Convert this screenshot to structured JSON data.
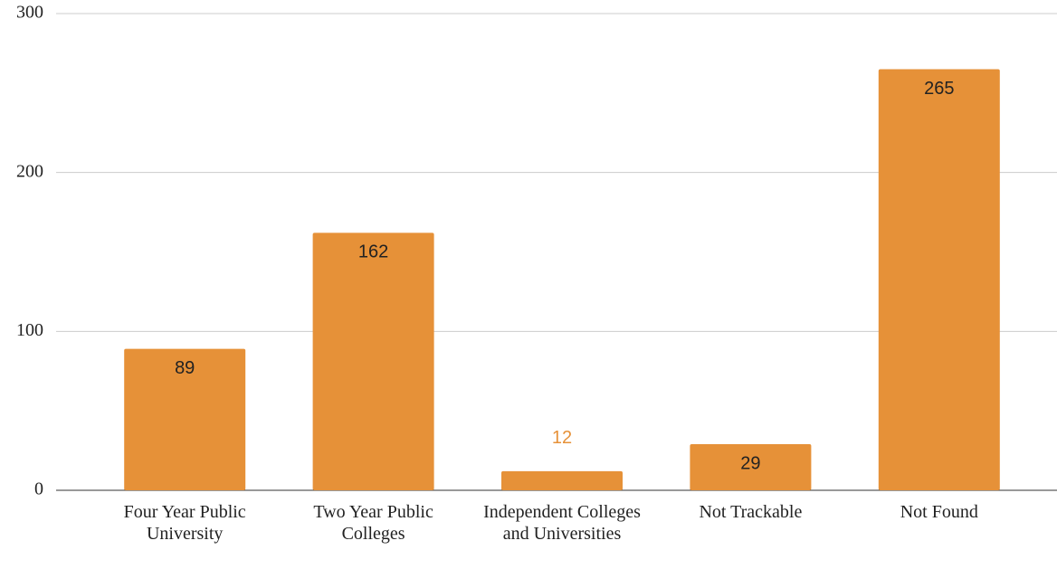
{
  "chart_data": {
    "type": "bar",
    "categories": [
      "Four Year Public University",
      "Two Year Public Colleges",
      "Independent Colleges and Universities",
      "Not Trackable",
      "Not Found"
    ],
    "values": [
      89,
      162,
      12,
      29,
      265
    ],
    "color": "#e69138",
    "ylim": [
      0,
      300
    ],
    "yticks": [
      0,
      100,
      200,
      300
    ],
    "grid": true
  }
}
